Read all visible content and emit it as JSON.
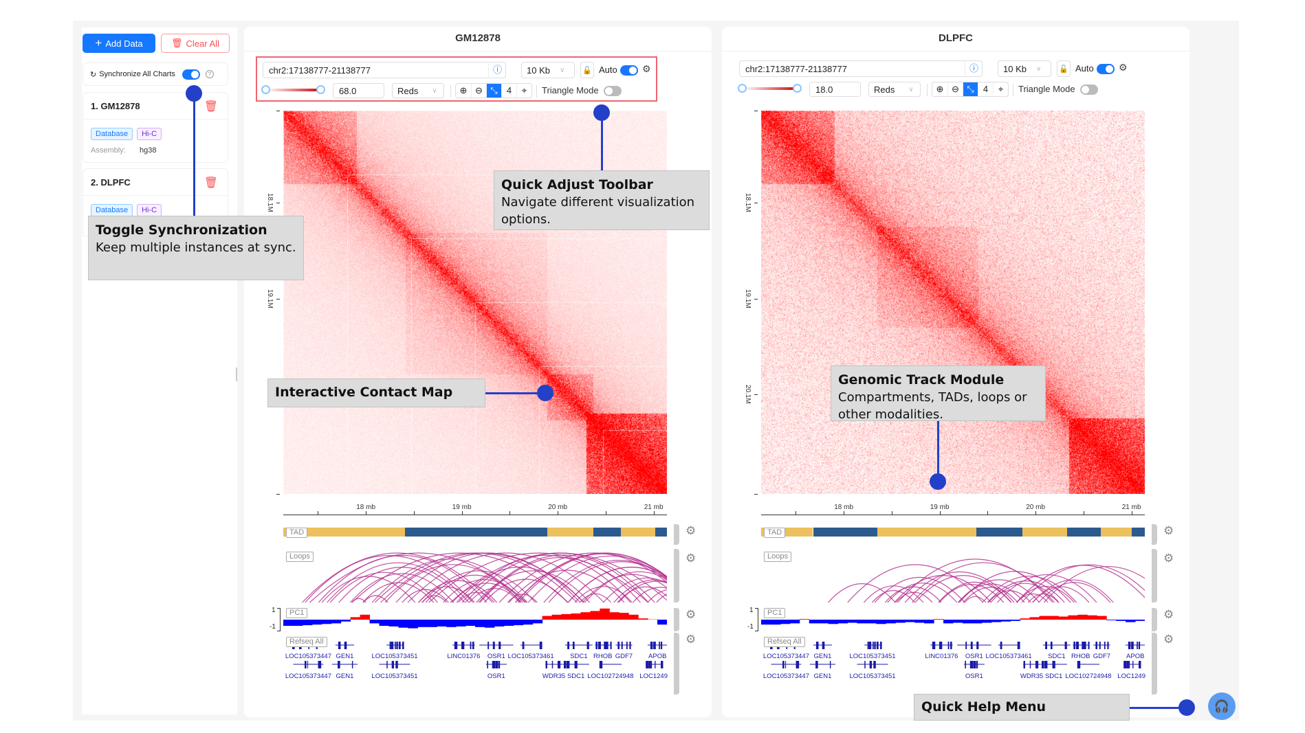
{
  "sidebar": {
    "add_label": "Add Data",
    "clear_label": "Clear All",
    "sync_label": "Synchronize All Charts",
    "sync_on": true,
    "items": [
      {
        "title": "1. GM12878",
        "tags": [
          "Database",
          "Hi-C"
        ],
        "assembly_label": "Assembly:",
        "assembly": "hg38"
      },
      {
        "title": "2. DLPFC",
        "tags": [
          "Database",
          "Hi-C"
        ]
      }
    ]
  },
  "colors": {
    "accent": "#1677ff",
    "danger": "#ff4d4f",
    "tad_a": "#ecc05c",
    "tad_b": "#2d5a8e",
    "loops": "#b5338f",
    "pc1_pos": "#ff0000",
    "pc1_neg": "#0000ff",
    "gene": "#1a1aa8",
    "callout_dot": "#2340c8"
  },
  "panels": [
    {
      "title": "GM12878",
      "location": "chr2:17138777-21138777",
      "resolution": "10 Kb",
      "auto_label": "Auto",
      "auto_on": true,
      "max_value": "68.0",
      "colormap": "Reds",
      "zoom_level": "4",
      "triangle_label": "Triangle Mode",
      "triangle_on": false,
      "tad": [
        [
          17.14,
          18.41,
          "a"
        ],
        [
          18.41,
          19.89,
          "b"
        ],
        [
          19.89,
          20.37,
          "a"
        ],
        [
          20.37,
          20.66,
          "b"
        ],
        [
          20.66,
          21.02,
          "a"
        ],
        [
          21.02,
          21.14,
          "b"
        ]
      ],
      "pc1": [
        -0.5,
        -0.5,
        -0.45,
        -0.4,
        -0.35,
        -0.3,
        -0.15,
        0.2,
        0.4,
        -0.3,
        -0.5,
        -0.55,
        -0.65,
        -0.7,
        -0.6,
        -0.6,
        -0.55,
        -0.6,
        -0.55,
        -0.5,
        -0.6,
        -0.65,
        -0.55,
        -0.5,
        -0.45,
        -0.4,
        -0.3,
        0.3,
        0.4,
        0.45,
        0.5,
        0.6,
        0.7,
        0.9,
        0.6,
        0.55,
        0.4,
        0.1,
        0.02,
        -0.4
      ]
    },
    {
      "title": "DLPFC",
      "location": "chr2:17138777-21138777",
      "resolution": "10 Kb",
      "auto_label": "Auto",
      "auto_on": true,
      "max_value": "18.0",
      "colormap": "Reds",
      "zoom_level": "4",
      "triangle_label": "Triangle Mode",
      "triangle_on": false,
      "tad": [
        [
          17.14,
          17.68,
          "a"
        ],
        [
          17.68,
          18.35,
          "b"
        ],
        [
          18.35,
          19.38,
          "a"
        ],
        [
          19.38,
          19.86,
          "b"
        ],
        [
          19.86,
          20.33,
          "a"
        ],
        [
          20.33,
          20.68,
          "b"
        ],
        [
          20.68,
          21.0,
          "a"
        ],
        [
          21.0,
          21.14,
          "b"
        ]
      ],
      "pc1": [
        -0.4,
        -0.4,
        -0.35,
        -0.3,
        0.05,
        -0.3,
        -0.3,
        -0.35,
        -0.3,
        -0.25,
        -0.3,
        -0.3,
        -0.35,
        -0.3,
        -0.25,
        -0.2,
        -0.25,
        -0.3,
        0.05,
        -0.3,
        -0.25,
        -0.3,
        -0.3,
        -0.25,
        -0.2,
        -0.15,
        -0.1,
        0.1,
        0.2,
        0.3,
        0.3,
        0.25,
        0.35,
        0.4,
        0.35,
        0.3,
        -0.05,
        -0.1,
        -0.2,
        -0.1
      ]
    }
  ],
  "genome": {
    "start_mb": 17.138777,
    "end_mb": 21.138777,
    "x_ticks": [
      {
        "v": 18,
        "label": "18 mb"
      },
      {
        "v": 19,
        "label": "19 mb"
      },
      {
        "v": 20,
        "label": "20 mb"
      },
      {
        "v": 21,
        "label": "21 mb"
      }
    ],
    "y_ticks": [
      {
        "v": 18.1,
        "label": "18.1M"
      },
      {
        "v": 19.1,
        "label": "19.1M"
      },
      {
        "v": 20.1,
        "label": "20.1M"
      }
    ],
    "track_labels": {
      "tad": "TAD",
      "loops": "Loops",
      "pc1": "PC1",
      "refseq": "Refseq All"
    },
    "pc1_axis": [
      "1",
      "-1"
    ],
    "genes_row1": [
      {
        "mb": 17.4,
        "name": "LOC105373447"
      },
      {
        "mb": 17.78,
        "name": "GEN1"
      },
      {
        "mb": 18.3,
        "name": "LOC105373451"
      },
      {
        "mb": 19.02,
        "name": "LINC01376"
      },
      {
        "mb": 19.36,
        "name": "OSR1"
      },
      {
        "mb": 19.72,
        "name": "LOC105373461"
      },
      {
        "mb": 20.22,
        "name": "SDC1"
      },
      {
        "mb": 20.47,
        "name": "RHOB"
      },
      {
        "mb": 20.69,
        "name": "GDF7"
      },
      {
        "mb": 21.04,
        "name": "APOB"
      }
    ],
    "genes_row2": [
      {
        "mb": 17.4,
        "name": "LOC105373447"
      },
      {
        "mb": 17.78,
        "name": "GEN1"
      },
      {
        "mb": 18.3,
        "name": "LOC105373451"
      },
      {
        "mb": 19.36,
        "name": "OSR1"
      },
      {
        "mb": 19.96,
        "name": "WDR35"
      },
      {
        "mb": 20.19,
        "name": "SDC1"
      },
      {
        "mb": 20.55,
        "name": "LOC102724948"
      },
      {
        "mb": 21.0,
        "name": "LOC1249"
      }
    ]
  },
  "callouts": {
    "sync": {
      "title": "Toggle Synchronization",
      "body": "Keep multiple instances at sync."
    },
    "toolbar": {
      "title": "Quick Adjust Toolbar",
      "body": "Navigate different visualization options."
    },
    "map": {
      "title": "Interactive Contact Map"
    },
    "track": {
      "title": "Genomic Track Module",
      "body": "Compartments, TADs, loops or other modalities."
    },
    "help": {
      "title": "Quick Help Menu"
    }
  },
  "icons": {
    "add": "plus-icon",
    "clear": "trash-icon",
    "sync": "sync-icon",
    "help": "question-circle-icon",
    "lock": "unlock-icon",
    "settings": "gear-icon",
    "zoom_in": "zoom-in-icon",
    "zoom_out": "zoom-out-icon",
    "reset": "expand-icon",
    "center": "target-icon",
    "help_button": "headset-icon"
  }
}
